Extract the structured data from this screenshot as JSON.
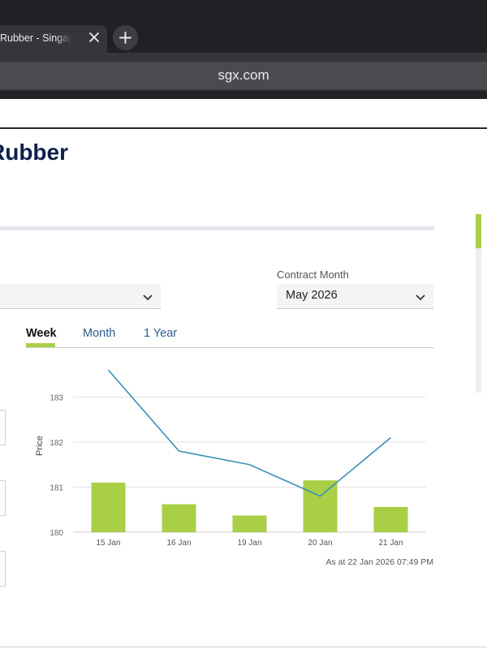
{
  "browser": {
    "tab_title": "Rubber - Singapore Exchange",
    "url": "sgx.com"
  },
  "page": {
    "title": "Rubber",
    "filters": {
      "left_select_value": "",
      "contract_month_label": "Contract Month",
      "contract_month_value": "May 2026"
    },
    "period_tabs": [
      "Week",
      "Month",
      "1 Year"
    ],
    "active_period": "Week",
    "as_at": "As at 22 Jan 2026 07:49 PM"
  },
  "colors": {
    "accent_green": "#a8cf45",
    "line_blue": "#3a8fb8",
    "title_navy": "#0c1f4a",
    "link_blue": "#2a5d8f"
  },
  "chart_data": {
    "type": "bar",
    "categories": [
      "15 Jan",
      "16 Jan",
      "19 Jan",
      "20 Jan",
      "21 Jan"
    ],
    "ylabel": "Price",
    "yticks": [
      180,
      181,
      182,
      183
    ],
    "ylim": [
      180,
      183.8
    ],
    "series": [
      {
        "kind": "bar",
        "values": [
          181.1,
          180.62,
          180.37,
          181.15,
          180.56
        ]
      },
      {
        "kind": "line",
        "values": [
          183.6,
          181.8,
          181.5,
          180.8,
          182.1
        ]
      }
    ],
    "grid": true
  }
}
